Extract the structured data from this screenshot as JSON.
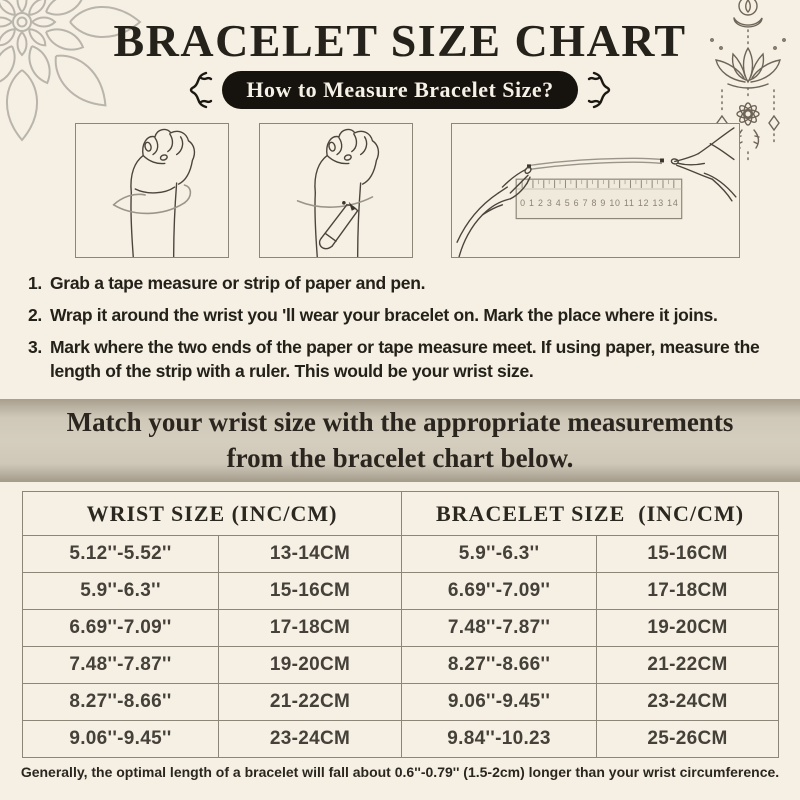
{
  "colors": {
    "bg": "#f5f0e3",
    "ink": "#25211b",
    "pill_bg": "#16120d",
    "pill_fg": "#f6f1e6",
    "border": "#8c8678",
    "cell_ink": "#45403a",
    "banner_mid": "#d5cebe",
    "banner_edge": "#a89f8f",
    "line_art": "#4a443c",
    "string": "#9a948a",
    "decor_gray": "#b9b5ac",
    "lotus_line": "#6e6558"
  },
  "header": {
    "title": "BRACELET SIZE CHART",
    "pill": "How to Measure Bracelet Size?"
  },
  "illustrations": {
    "step1_label": "hand with tape measure wrapped around wrist",
    "step2_label": "hand marking wrist with pen",
    "step3_label": "hands measuring paper strip with ruler",
    "ruler_numbers": "0 1 2 3 4 5 6 7 8 9 10 11 12 13 14"
  },
  "instructions": [
    {
      "num": "1.",
      "text": "Grab a tape measure or strip of paper and pen."
    },
    {
      "num": "2.",
      "text": "Wrap it around the wrist you 'll wear your bracelet on. Mark the place where it joins."
    },
    {
      "num": "3.",
      "text": "Mark where the two ends of the paper or tape measure meet. If using paper, measure the length of the strip with a ruler. This would be your wrist size."
    }
  ],
  "banner": {
    "line1": "Match your wrist size with the appropriate measurements",
    "line2": "from the bracelet chart below."
  },
  "chart_data": {
    "type": "table",
    "headers": [
      "WRIST SIZE (INC/CM)",
      "BRACELET SIZE  (INC/CM)"
    ],
    "rows": [
      [
        "5.12''-5.52''",
        "13-14CM",
        "5.9''-6.3''",
        "15-16CM"
      ],
      [
        "5.9''-6.3''",
        "15-16CM",
        "6.69''-7.09''",
        "17-18CM"
      ],
      [
        "6.69''-7.09''",
        "17-18CM",
        "7.48''-7.87''",
        "19-20CM"
      ],
      [
        "7.48''-7.87''",
        "19-20CM",
        "8.27''-8.66''",
        "21-22CM"
      ],
      [
        "8.27''-8.66''",
        "21-22CM",
        "9.06''-9.45''",
        "23-24CM"
      ],
      [
        "9.06''-9.45''",
        "23-24CM",
        "9.84''-10.23",
        "25-26CM"
      ]
    ]
  },
  "footer": {
    "note": "Generally, the optimal length of a bracelet will fall about 0.6''-0.79'' (1.5-2cm) longer than your wrist circumference."
  }
}
